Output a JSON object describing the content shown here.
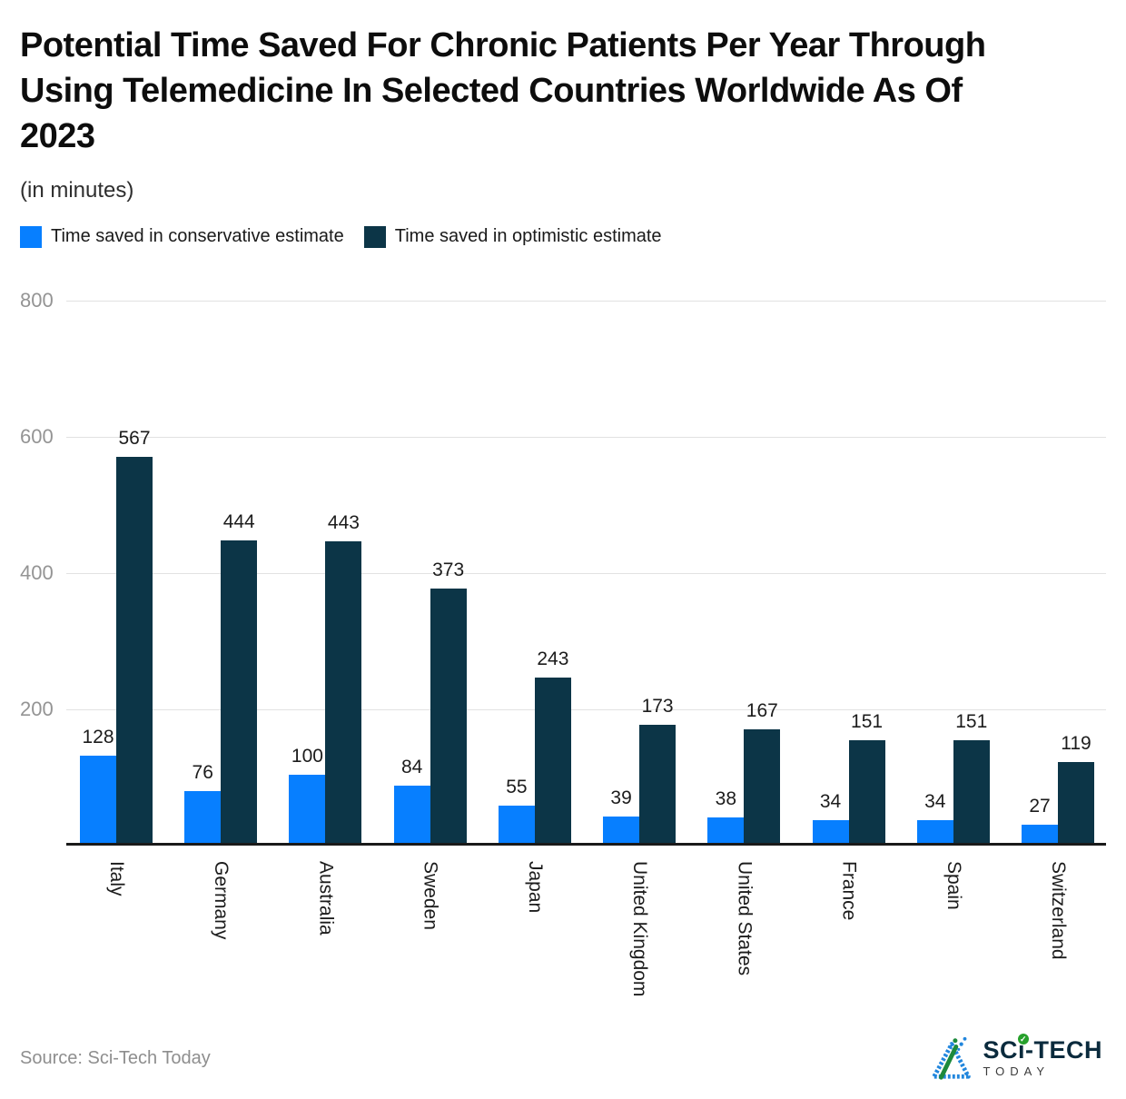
{
  "header": {
    "title_lines": [
      "Potential Time Saved For Chronic Patients Per Year Through",
      "Using Telemedicine In Selected Countries Worldwide As Of",
      "2023"
    ],
    "subtitle": "(in minutes)"
  },
  "chart_data": {
    "type": "bar",
    "categories": [
      "Italy",
      "Germany",
      "Australia",
      "Sweden",
      "Japan",
      "United Kingdom",
      "United States",
      "France",
      "Spain",
      "Switzerland"
    ],
    "series": [
      {
        "name": "Time saved in conservative estimate",
        "color": "#077fff",
        "values": [
          128,
          76,
          100,
          84,
          55,
          39,
          38,
          34,
          34,
          27
        ]
      },
      {
        "name": "Time saved in optimistic estimate",
        "color": "#0c3547",
        "values": [
          567,
          444,
          443,
          373,
          243,
          173,
          167,
          151,
          151,
          119
        ]
      }
    ],
    "title": "Potential Time Saved For Chronic Patients Per Year Through Using Telemedicine In Selected Countries Worldwide As Of 2023",
    "unit": "minutes",
    "xlabel": "",
    "ylabel": "",
    "ylim": [
      0,
      800
    ],
    "yticks": [
      800,
      600,
      400,
      200
    ],
    "grid": true,
    "legend_position": "top",
    "value_labels": true
  },
  "footer": {
    "source": "Source: Sci-Tech Today",
    "logo": {
      "brand_prefix": "SC",
      "brand_i": "ı",
      "brand_check": "✓",
      "brand_suffix": "-TECH",
      "line2": "TODAY"
    }
  }
}
